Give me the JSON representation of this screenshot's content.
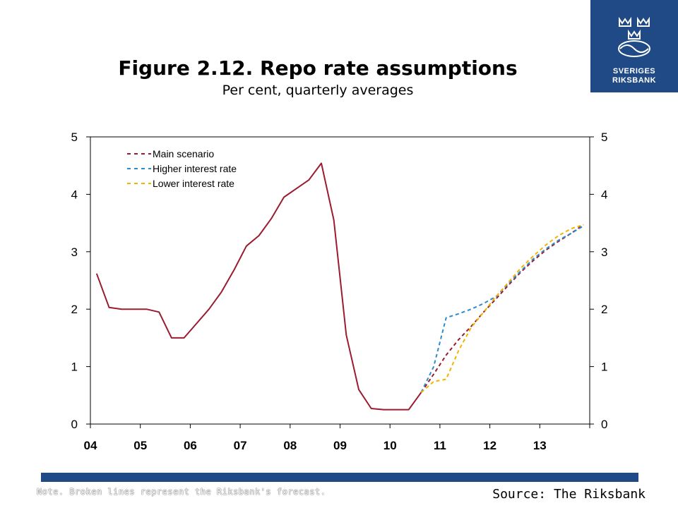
{
  "logo": {
    "line1": "SVERIGES",
    "line2": "RIKSBANK"
  },
  "header": {
    "title": "Figure 2.12. Repo rate assumptions",
    "subtitle": "Per cent, quarterly averages"
  },
  "footer": {
    "note": "Note. Broken lines represent the Riksbank's forecast.",
    "source": "Source: The Riksbank"
  },
  "colors": {
    "main": "#9b1b30",
    "higher": "#2e8bcc",
    "lower": "#f0b400",
    "brand": "#1f4a86"
  },
  "chart_data": {
    "type": "line",
    "xlabel": "",
    "ylabel": "",
    "ylim": [
      0,
      5
    ],
    "yticks": [
      "0",
      "1",
      "2",
      "3",
      "4",
      "5"
    ],
    "xtick_labels": [
      "04",
      "05",
      "06",
      "07",
      "08",
      "09",
      "10",
      "11",
      "12",
      "13"
    ],
    "x_unit": "year (quarterly)",
    "xlim": [
      2004.0,
      2014.0
    ],
    "legend_position": "top-left",
    "series": [
      {
        "name": "",
        "style": "solid",
        "color_key": "main",
        "x": [
          2004.125,
          2004.375,
          2004.625,
          2004.875,
          2005.125,
          2005.375,
          2005.625,
          2005.875,
          2006.125,
          2006.375,
          2006.625,
          2006.875,
          2007.125,
          2007.375,
          2007.625,
          2007.875,
          2008.125,
          2008.375,
          2008.625,
          2008.875,
          2009.125,
          2009.375,
          2009.625,
          2009.875,
          2010.125,
          2010.375,
          2010.625
        ],
        "y": [
          2.62,
          2.03,
          2.0,
          2.0,
          2.0,
          1.95,
          1.5,
          1.5,
          1.75,
          2.0,
          2.3,
          2.68,
          3.1,
          3.28,
          3.58,
          3.95,
          4.1,
          4.25,
          4.54,
          3.55,
          1.55,
          0.6,
          0.27,
          0.25,
          0.25,
          0.25,
          0.55
        ]
      },
      {
        "name": "Main scenario",
        "style": "dashed",
        "color_key": "main",
        "x": [
          2010.625,
          2010.875,
          2011.125,
          2011.375,
          2011.625,
          2011.875,
          2012.125,
          2012.375,
          2012.625,
          2012.875,
          2013.125,
          2013.375,
          2013.625,
          2013.875
        ],
        "y": [
          0.55,
          0.87,
          1.2,
          1.47,
          1.7,
          1.95,
          2.18,
          2.42,
          2.65,
          2.85,
          3.03,
          3.18,
          3.32,
          3.47
        ]
      },
      {
        "name": "Higher interest rate",
        "style": "dashed",
        "color_key": "higher",
        "x": [
          2010.625,
          2010.875,
          2011.125,
          2011.375,
          2011.625,
          2011.875,
          2012.125,
          2012.375,
          2012.625,
          2012.875,
          2013.125,
          2013.375,
          2013.625,
          2013.875
        ],
        "y": [
          0.55,
          1.0,
          1.85,
          1.92,
          2.0,
          2.1,
          2.22,
          2.45,
          2.67,
          2.88,
          3.05,
          3.2,
          3.32,
          3.45
        ]
      },
      {
        "name": "Lower interest rate",
        "style": "dashed",
        "color_key": "lower",
        "x": [
          2010.625,
          2010.875,
          2011.125,
          2011.375,
          2011.625,
          2011.875,
          2012.125,
          2012.375,
          2012.625,
          2012.875,
          2013.125,
          2013.375,
          2013.625,
          2013.875
        ],
        "y": [
          0.55,
          0.74,
          0.78,
          1.28,
          1.68,
          1.95,
          2.22,
          2.47,
          2.72,
          2.93,
          3.12,
          3.28,
          3.4,
          3.47
        ]
      }
    ]
  }
}
